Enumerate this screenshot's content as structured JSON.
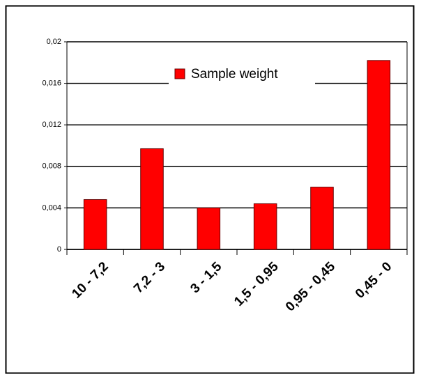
{
  "chart_data": {
    "type": "bar",
    "categories": [
      "10 - 7,2",
      "7,2 - 3",
      "3 - 1,5",
      "1,5 - 0,95",
      "0,95 - 0,45",
      "0,45 - 0"
    ],
    "series": [
      {
        "name": "Sample weight",
        "color": "#ff0000",
        "values": [
          0.0048,
          0.0097,
          0.004,
          0.0044,
          0.006,
          0.0182
        ]
      }
    ],
    "ylim": [
      0,
      0.02
    ],
    "yticks": [
      0,
      {
        "value": 0.004,
        "label": "0,004"
      },
      {
        "value": 0.008,
        "label": "0,008"
      },
      {
        "value": 0.012,
        "label": "0,012"
      },
      {
        "value": 0.016,
        "label": "0,016"
      },
      {
        "value": 0.02,
        "label": "0,02"
      }
    ],
    "grid": true
  }
}
